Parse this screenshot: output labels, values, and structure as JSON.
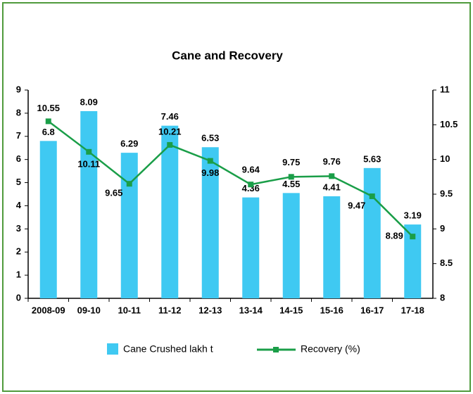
{
  "chart_data": {
    "type": "bar-line",
    "title": "Cane and Recovery",
    "categories": [
      "2008-09",
      "09-10",
      "10-11",
      "11-12",
      "12-13",
      "13-14",
      "14-15",
      "15-16",
      "16-17",
      "17-18"
    ],
    "series": [
      {
        "name": "Cane Crushed lakh t",
        "type": "bar",
        "color": "#3fc9f2",
        "values": [
          6.8,
          8.09,
          6.29,
          7.46,
          6.53,
          4.36,
          4.55,
          4.41,
          5.63,
          3.19
        ]
      },
      {
        "name": "Recovery (%)",
        "type": "line",
        "axis": "y2",
        "color": "#1a9e48",
        "values": [
          10.55,
          10.11,
          9.65,
          10.21,
          9.98,
          9.64,
          9.75,
          9.76,
          9.47,
          8.89
        ]
      }
    ],
    "ylim": [
      0,
      9
    ],
    "yticks": [
      0,
      1,
      2,
      3,
      4,
      5,
      6,
      7,
      8,
      9
    ],
    "y2lim": [
      8,
      11
    ],
    "y2ticks": [
      8,
      8.5,
      9,
      9.5,
      10,
      10.5,
      11
    ],
    "legend": "bottom",
    "grid": false
  }
}
